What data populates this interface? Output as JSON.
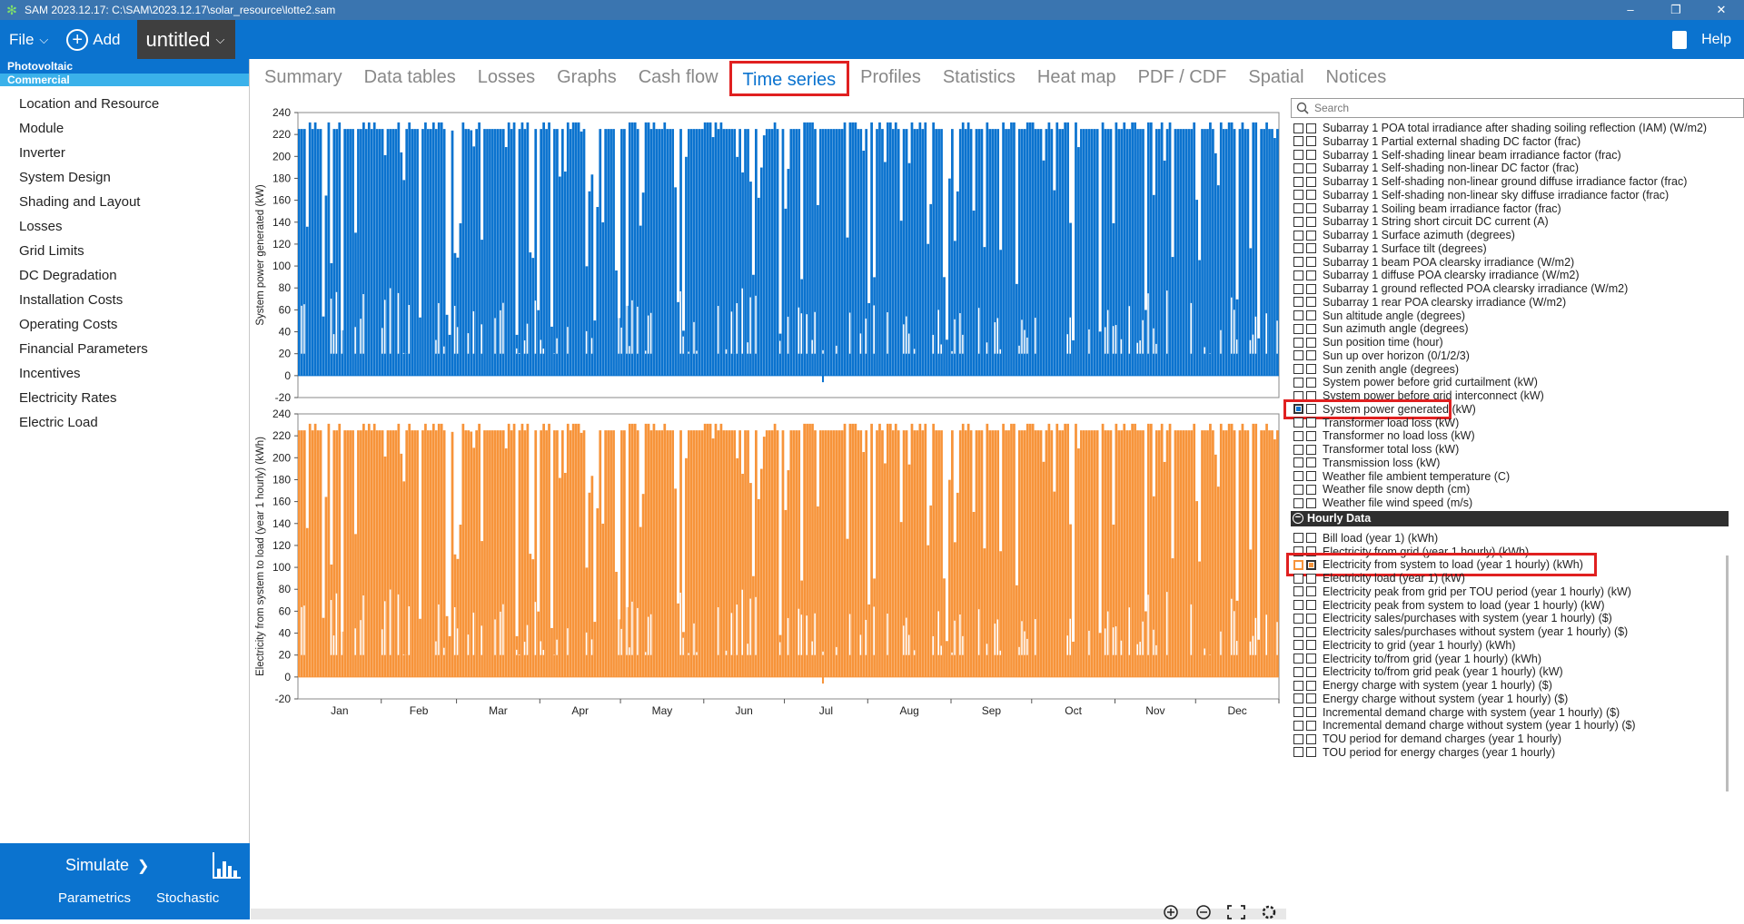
{
  "window": {
    "title": "SAM 2023.12.17: C:\\SAM\\2023.12.17\\solar_resource\\lotte2.sam"
  },
  "menubar": {
    "file": "File",
    "add": "Add",
    "case_name": "untitled",
    "help": "Help"
  },
  "sidebar": {
    "config_tech": "Photovoltaic",
    "config_fin": "Commercial",
    "items": [
      {
        "label": "Location and Resource"
      },
      {
        "label": "Module"
      },
      {
        "label": "Inverter"
      },
      {
        "label": "System Design"
      },
      {
        "label": "Shading and Layout"
      },
      {
        "label": "Losses"
      },
      {
        "label": "Grid Limits"
      },
      {
        "label": "DC Degradation"
      },
      {
        "label": "Installation Costs"
      },
      {
        "label": "Operating Costs"
      },
      {
        "label": "Financial Parameters"
      },
      {
        "label": "Incentives"
      },
      {
        "label": "Electricity Rates"
      },
      {
        "label": "Electric Load"
      }
    ],
    "simulate": "Simulate",
    "parametrics": "Parametrics",
    "stochastic": "Stochastic"
  },
  "tabs": [
    {
      "label": "Summary",
      "active": false
    },
    {
      "label": "Data tables",
      "active": false
    },
    {
      "label": "Losses",
      "active": false
    },
    {
      "label": "Graphs",
      "active": false
    },
    {
      "label": "Cash flow",
      "active": false
    },
    {
      "label": "Time series",
      "active": true
    },
    {
      "label": "Profiles",
      "active": false
    },
    {
      "label": "Statistics",
      "active": false
    },
    {
      "label": "Heat map",
      "active": false
    },
    {
      "label": "PDF / CDF",
      "active": false
    },
    {
      "label": "Spatial",
      "active": false
    },
    {
      "label": "Notices",
      "active": false
    }
  ],
  "chart_data": [
    {
      "type": "area",
      "ylabel": "System power generated (kW)",
      "ylim": [
        -20,
        240
      ],
      "yticks": [
        240,
        220,
        200,
        180,
        160,
        140,
        120,
        100,
        80,
        60,
        40,
        20,
        0,
        -20
      ],
      "color": "#0b73cf",
      "series": [
        {
          "name": "System power generated (kW)",
          "peak": 231,
          "clip_level": 225,
          "min": -6
        }
      ]
    },
    {
      "type": "area",
      "ylabel": "Electricity from system to load (year 1 hourly) (kWh)",
      "ylim": [
        -20,
        240
      ],
      "yticks": [
        240,
        220,
        200,
        180,
        160,
        140,
        120,
        100,
        80,
        60,
        40,
        20,
        0,
        -20
      ],
      "color": "#f7943a",
      "series": [
        {
          "name": "Electricity from system to load (year 1 hourly) (kWh)",
          "peak": 231,
          "clip_level": 225,
          "min": -6
        }
      ]
    }
  ],
  "xaxis": {
    "months": [
      "Jan",
      "Feb",
      "Mar",
      "Apr",
      "May",
      "Jun",
      "Jul",
      "Aug",
      "Sep",
      "Oct",
      "Nov",
      "Dec"
    ]
  },
  "search": {
    "placeholder": "Search"
  },
  "variables_top": [
    {
      "label": "Subarray 1 POA total irradiance after shading soiling reflection (IAM) (W/m2)"
    },
    {
      "label": "Subarray 1 Partial external shading DC factor (frac)"
    },
    {
      "label": "Subarray 1 Self-shading linear beam irradiance factor (frac)"
    },
    {
      "label": "Subarray 1 Self-shading non-linear DC factor (frac)"
    },
    {
      "label": "Subarray 1 Self-shading non-linear ground diffuse irradiance factor (frac)"
    },
    {
      "label": "Subarray 1 Self-shading non-linear sky diffuse irradiance factor (frac)"
    },
    {
      "label": "Subarray 1 Soiling beam irradiance factor (frac)"
    },
    {
      "label": "Subarray 1 String short circuit DC current (A)"
    },
    {
      "label": "Subarray 1 Surface azimuth (degrees)"
    },
    {
      "label": "Subarray 1 Surface tilt (degrees)"
    },
    {
      "label": "Subarray 1 beam POA clearsky irradiance (W/m2)"
    },
    {
      "label": "Subarray 1 diffuse POA clearsky irradiance (W/m2)"
    },
    {
      "label": "Subarray 1 ground reflected POA clearsky irradiance (W/m2)"
    },
    {
      "label": "Subarray 1 rear POA clearsky irradiance (W/m2)"
    },
    {
      "label": "Sun altitude angle (degrees)"
    },
    {
      "label": "Sun azimuth angle (degrees)"
    },
    {
      "label": "Sun position time (hour)"
    },
    {
      "label": "Sun up over horizon (0/1/2/3)"
    },
    {
      "label": "Sun zenith angle (degrees)"
    },
    {
      "label": "System power before grid curtailment (kW)"
    },
    {
      "label": "System power before grid interconnect (kW)"
    },
    {
      "label": "System power generated (kW)",
      "checked": "left"
    },
    {
      "label": "Transformer load loss (kW)"
    },
    {
      "label": "Transformer no load loss (kW)"
    },
    {
      "label": "Transformer total loss (kW)"
    },
    {
      "label": "Transmission loss (kW)"
    },
    {
      "label": "Weather file ambient temperature (C)"
    },
    {
      "label": "Weather file snow depth (cm)"
    },
    {
      "label": "Weather file wind speed (m/s)"
    }
  ],
  "hourly_group": {
    "label": "Hourly Data"
  },
  "variables_hourly": [
    {
      "label": "Bill load (year 1) (kWh)"
    },
    {
      "label": "Electricity from grid (year 1 hourly) (kWh)"
    },
    {
      "label": "Electricity from system to load (year 1 hourly) (kWh)",
      "checked": "right"
    },
    {
      "label": "Electricity load (year 1) (kW)"
    },
    {
      "label": "Electricity peak from grid per TOU period (year 1 hourly) (kW)"
    },
    {
      "label": "Electricity peak from system to load (year 1 hourly) (kW)"
    },
    {
      "label": "Electricity sales/purchases with system (year 1 hourly) ($)"
    },
    {
      "label": "Electricity sales/purchases without system (year 1 hourly) ($)"
    },
    {
      "label": "Electricity to grid (year 1 hourly) (kWh)"
    },
    {
      "label": "Electricity to/from grid (year 1 hourly) (kWh)"
    },
    {
      "label": "Electricity to/from grid peak (year 1 hourly) (kW)"
    },
    {
      "label": "Energy charge with system (year 1 hourly) ($)"
    },
    {
      "label": "Energy charge without system (year 1 hourly) ($)"
    },
    {
      "label": "Incremental demand charge with system (year 1 hourly) ($)"
    },
    {
      "label": "Incremental demand charge without system (year 1 hourly) ($)"
    },
    {
      "label": "TOU period for demand charges (year 1 hourly)"
    },
    {
      "label": "TOU period for energy charges (year 1 hourly)"
    }
  ]
}
